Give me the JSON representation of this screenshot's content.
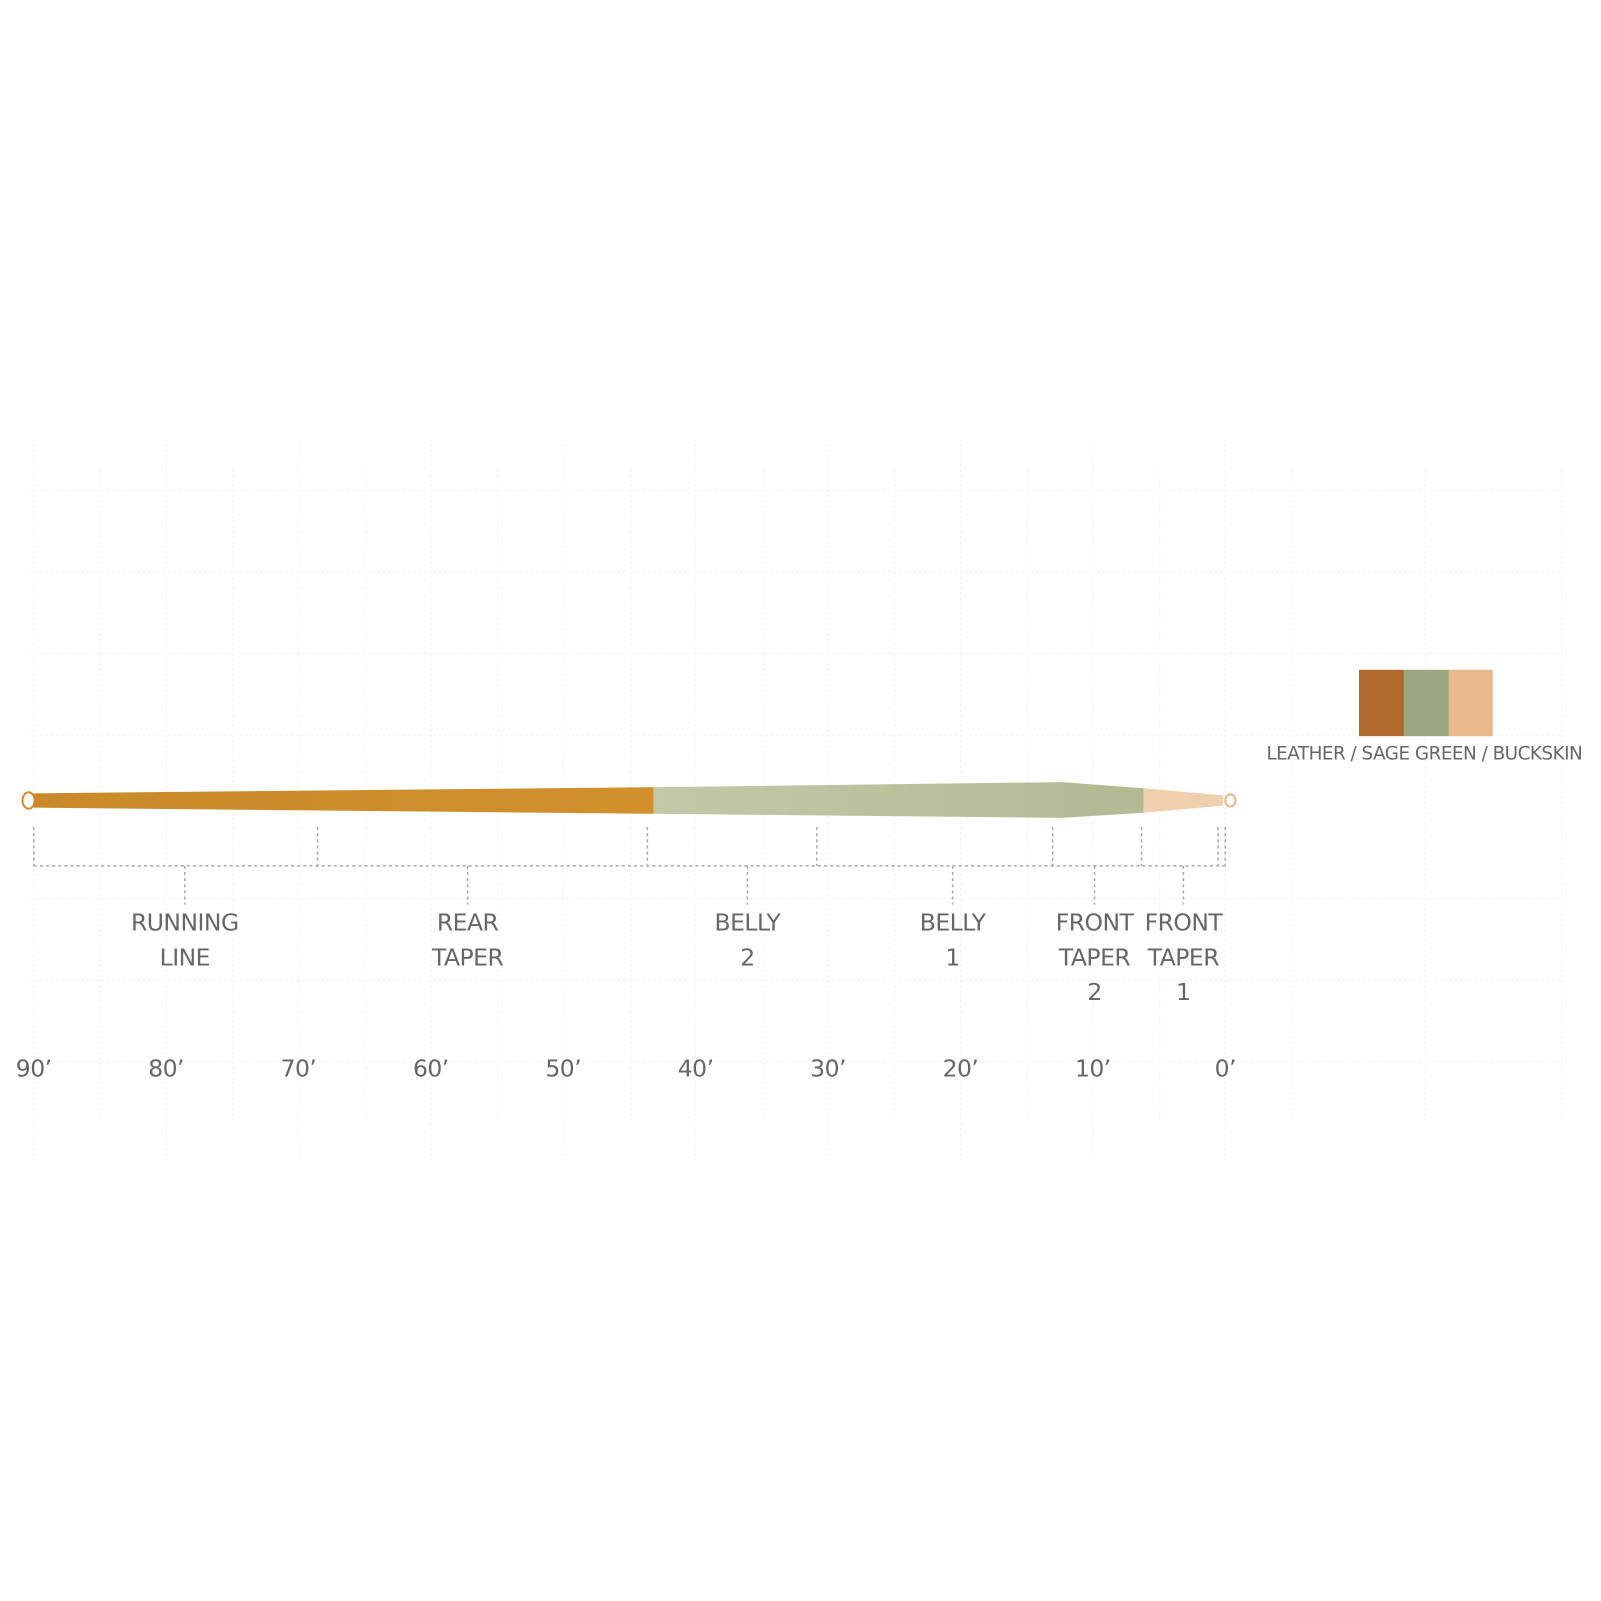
{
  "sections": [
    {
      "lines": [
        "RUNNING",
        "LINE"
      ]
    },
    {
      "lines": [
        "REAR",
        "TAPER"
      ]
    },
    {
      "lines": [
        "BELLY",
        "2"
      ]
    },
    {
      "lines": [
        "BELLY",
        "1"
      ]
    },
    {
      "lines": [
        "FRONT",
        "TAPER",
        "2"
      ]
    },
    {
      "lines": [
        "FRONT",
        "TAPER",
        "1"
      ]
    }
  ],
  "scale": [
    "90’",
    "80’",
    "70’",
    "60’",
    "50’",
    "40’",
    "30’",
    "20’",
    "10’",
    "0’"
  ],
  "legend": {
    "text": "LEATHER / SAGE GREEN / BUCKSKIN"
  }
}
